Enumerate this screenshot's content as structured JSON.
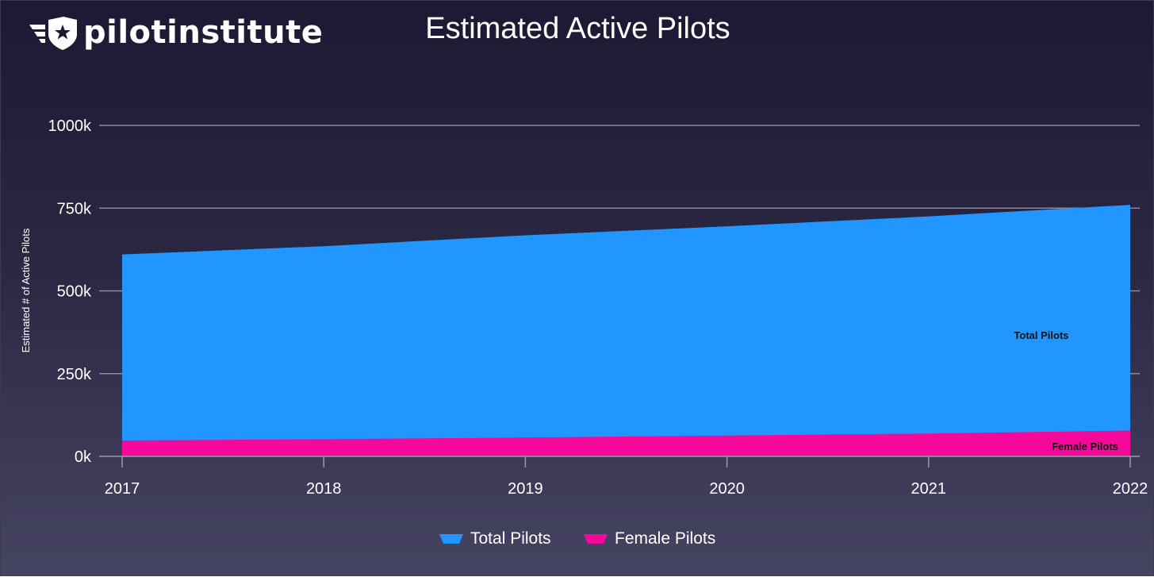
{
  "brand": {
    "name": "pilotinstitute"
  },
  "colors": {
    "total": "#2196ff",
    "female": "#f5089a",
    "grid": "#8a8a9a",
    "axis": "#9a9aaa"
  },
  "chart_data": {
    "type": "area",
    "title": "Estimated Active Pilots",
    "xlabel": "",
    "ylabel": "Estimated # of Active Pilots",
    "x": [
      "2017",
      "2018",
      "2019",
      "2020",
      "2021",
      "2022"
    ],
    "ylim": [
      0,
      1000000
    ],
    "yticks": [
      0,
      250000,
      500000,
      750000,
      1000000
    ],
    "ytick_labels": [
      "0k",
      "250k",
      "500k",
      "750k",
      "1000k"
    ],
    "grid": true,
    "legend_position": "bottom-center",
    "series": [
      {
        "name": "Total Pilots",
        "values": [
          610000,
          635000,
          668000,
          695000,
          725000,
          760000
        ]
      },
      {
        "name": "Female Pilots",
        "values": [
          48000,
          52000,
          57000,
          63000,
          69000,
          78000
        ]
      }
    ],
    "area_labels": [
      "Total Pilots",
      "Female Pilots"
    ]
  }
}
